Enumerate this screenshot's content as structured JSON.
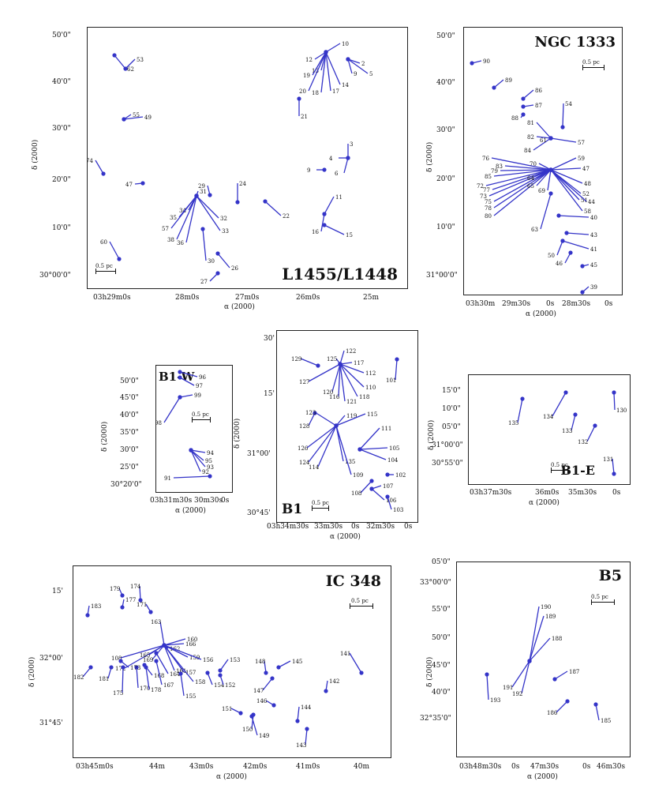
{
  "figure": {
    "ylabel": "δ (2000)",
    "xlabel": "α (2000)",
    "marker_color": "#3434c8",
    "scale_label": "0.5 pc"
  },
  "panels": {
    "l1455": {
      "title": "L1455/L1448",
      "yticks": [
        "50'0\"",
        "40'0\"",
        "30'0\"",
        "20'0\"",
        "10'0\"",
        "30°00'0\""
      ],
      "xticks": [
        "03h29m0s",
        "28m0s",
        "27m0s",
        "26m0s",
        "25m"
      ],
      "labels": [
        "62",
        "53",
        "55",
        "49",
        "74",
        "47",
        "60",
        "29",
        "24",
        "31",
        "34",
        "35",
        "32",
        "33",
        "22",
        "57",
        "38",
        "36",
        "30",
        "26",
        "27",
        "10",
        "12",
        "13",
        "19",
        "20",
        "18",
        "17",
        "14",
        "9",
        "5",
        "2",
        "21",
        "3",
        "4",
        "9",
        "6",
        "11",
        "16",
        "15"
      ]
    },
    "ngc1333": {
      "title": "NGC 1333",
      "yticks": [
        "50'0\"",
        "40'0\"",
        "30'0\"",
        "20'0\"",
        "10'0\"",
        "31°00'0\""
      ],
      "xticks": [
        "03h30m",
        "29m30s",
        "0s",
        "28m30s",
        "0s"
      ],
      "labels": [
        "90",
        "89",
        "86",
        "87",
        "88",
        "81",
        "82",
        "84",
        "61",
        "57",
        "54",
        "76",
        "83",
        "79",
        "85",
        "72",
        "77",
        "73",
        "75",
        "78",
        "80",
        "70",
        "64",
        "65",
        "69",
        "59",
        "47",
        "48",
        "52",
        "51",
        "58",
        "44",
        "40",
        "43",
        "41",
        "50",
        "46",
        "45",
        "39",
        "63"
      ]
    },
    "b1w": {
      "title": "B1-W",
      "yticks": [
        "50'0\"",
        "45'0\"",
        "40'0\"",
        "35'0\"",
        "30'0\"",
        "25'0\"",
        "30°20'0\""
      ],
      "xticks": [
        "03h31m30s",
        "30m30s",
        "0s"
      ],
      "labels": [
        "96",
        "97",
        "99",
        "98",
        "94",
        "95",
        "93",
        "92",
        "91"
      ]
    },
    "b1": {
      "title": "B1",
      "yticks": [
        "30'",
        "15'",
        "31°00'",
        "30°45'"
      ],
      "xticks": [
        "03h34m30s",
        "33m30s",
        "0s",
        "32m30s",
        "0s"
      ],
      "labels": [
        "129",
        "125",
        "122",
        "117",
        "112",
        "101",
        "127",
        "110",
        "118",
        "120",
        "116",
        "121",
        "128",
        "123",
        "119",
        "115",
        "111",
        "126",
        "124",
        "114",
        "135",
        "109",
        "105",
        "104",
        "102",
        "107",
        "106",
        "108",
        "103"
      ]
    },
    "b1e": {
      "title": "B1-E",
      "yticks": [
        "15'0\"",
        "10'0\"",
        "05'0\"",
        "31°00'0\"",
        "30°55'0\""
      ],
      "xticks": [
        "03h37m30s",
        "36m0s",
        "35m30s",
        "0s"
      ],
      "labels": [
        "135",
        "134",
        "133",
        "132",
        "130",
        "131"
      ]
    },
    "ic348": {
      "title": "IC 348",
      "yticks": [
        "15'",
        "32°00'",
        "31°45'"
      ],
      "xticks": [
        "03h45m0s",
        "44m",
        "43m0s",
        "42m0s",
        "41m0s",
        "40m"
      ],
      "labels": [
        "179",
        "174",
        "177",
        "171",
        "163",
        "183",
        "160",
        "166",
        "162",
        "159",
        "156",
        "108",
        "172",
        "165",
        "169",
        "157",
        "161",
        "158",
        "153",
        "148",
        "145",
        "141",
        "182",
        "181",
        "175",
        "170",
        "168",
        "167",
        "164",
        "154",
        "152",
        "147",
        "173",
        "178",
        "155",
        "142",
        "146",
        "144",
        "151",
        "150",
        "149",
        "143"
      ]
    },
    "b5": {
      "title": "B5",
      "yticks": [
        "05'0\"",
        "33°00'0\"",
        "55'0\"",
        "50'0\"",
        "45'0\"",
        "40'0\"",
        "32°35'0\""
      ],
      "xticks": [
        "03h48m30s",
        "0s",
        "47m30s",
        "0s",
        "46m30s"
      ],
      "labels": [
        "190",
        "189",
        "188",
        "191",
        "192",
        "193",
        "187",
        "186",
        "185"
      ]
    }
  }
}
